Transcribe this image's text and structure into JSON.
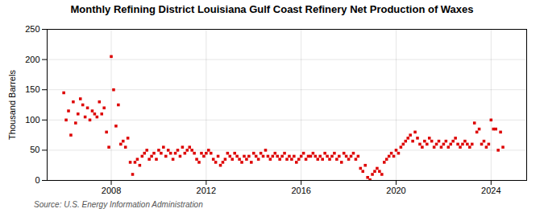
{
  "chart_data": {
    "type": "scatter",
    "title": "Monthly Refining District Louisiana Gulf Coast Refinery Net Production of Waxes",
    "ylabel": "Thousand Barrels",
    "annotations": [
      "Source: U.S. Energy Information Administration"
    ],
    "color": "#dd0000",
    "marker": "square",
    "grid": true,
    "xlim": [
      2005.3,
      2025.5
    ],
    "xticks": [
      2008,
      2012,
      2016,
      2020,
      2024
    ],
    "ylim": [
      0,
      250
    ],
    "yticks": [
      0,
      50,
      100,
      150,
      200,
      250
    ],
    "x": [
      2006.0,
      2006.1,
      2006.2,
      2006.3,
      2006.4,
      2006.5,
      2006.6,
      2006.7,
      2006.8,
      2006.9,
      2007.0,
      2007.1,
      2007.2,
      2007.3,
      2007.4,
      2007.5,
      2007.6,
      2007.7,
      2007.8,
      2007.9,
      2008.0,
      2008.1,
      2008.2,
      2008.3,
      2008.4,
      2008.5,
      2008.6,
      2008.7,
      2008.8,
      2008.9,
      2009.0,
      2009.1,
      2009.2,
      2009.3,
      2009.4,
      2009.5,
      2009.6,
      2009.7,
      2009.8,
      2009.9,
      2010.0,
      2010.1,
      2010.2,
      2010.3,
      2010.4,
      2010.5,
      2010.6,
      2010.7,
      2010.8,
      2010.9,
      2011.0,
      2011.1,
      2011.2,
      2011.3,
      2011.4,
      2011.5,
      2011.6,
      2011.7,
      2011.8,
      2011.9,
      2012.0,
      2012.1,
      2012.2,
      2012.3,
      2012.4,
      2012.5,
      2012.6,
      2012.7,
      2012.8,
      2012.9,
      2013.0,
      2013.1,
      2013.2,
      2013.3,
      2013.4,
      2013.5,
      2013.6,
      2013.7,
      2013.8,
      2013.9,
      2014.0,
      2014.1,
      2014.2,
      2014.3,
      2014.4,
      2014.5,
      2014.6,
      2014.7,
      2014.8,
      2014.9,
      2015.0,
      2015.1,
      2015.2,
      2015.3,
      2015.4,
      2015.5,
      2015.6,
      2015.7,
      2015.8,
      2015.9,
      2016.0,
      2016.1,
      2016.2,
      2016.3,
      2016.4,
      2016.5,
      2016.6,
      2016.7,
      2016.8,
      2016.9,
      2017.0,
      2017.1,
      2017.2,
      2017.3,
      2017.4,
      2017.5,
      2017.6,
      2017.7,
      2017.8,
      2017.9,
      2018.0,
      2018.1,
      2018.2,
      2018.3,
      2018.4,
      2018.5,
      2018.6,
      2018.7,
      2018.8,
      2018.9,
      2019.0,
      2019.1,
      2019.2,
      2019.3,
      2019.4,
      2019.5,
      2019.6,
      2019.7,
      2019.8,
      2019.9,
      2020.0,
      2020.1,
      2020.2,
      2020.3,
      2020.4,
      2020.5,
      2020.6,
      2020.7,
      2020.8,
      2020.9,
      2021.0,
      2021.1,
      2021.2,
      2021.3,
      2021.4,
      2021.5,
      2021.6,
      2021.7,
      2021.8,
      2021.9,
      2022.0,
      2022.1,
      2022.2,
      2022.3,
      2022.4,
      2022.5,
      2022.6,
      2022.7,
      2022.8,
      2022.9,
      2023.0,
      2023.1,
      2023.2,
      2023.3,
      2023.4,
      2023.5,
      2023.6,
      2023.7,
      2023.8,
      2023.9,
      2024.0,
      2024.1,
      2024.2,
      2024.3,
      2024.4,
      2024.5
    ],
    "values": [
      145,
      100,
      115,
      75,
      130,
      95,
      110,
      135,
      125,
      105,
      120,
      100,
      115,
      110,
      105,
      130,
      110,
      120,
      80,
      55,
      205,
      150,
      90,
      125,
      60,
      65,
      55,
      70,
      30,
      10,
      30,
      35,
      25,
      40,
      45,
      50,
      35,
      40,
      45,
      35,
      50,
      45,
      55,
      40,
      50,
      45,
      35,
      45,
      50,
      40,
      55,
      45,
      50,
      55,
      50,
      45,
      35,
      30,
      45,
      40,
      45,
      50,
      45,
      35,
      30,
      40,
      25,
      30,
      35,
      45,
      40,
      35,
      45,
      40,
      35,
      30,
      40,
      35,
      40,
      30,
      45,
      40,
      35,
      45,
      40,
      50,
      40,
      35,
      40,
      45,
      40,
      35,
      40,
      45,
      35,
      40,
      35,
      40,
      30,
      35,
      40,
      45,
      35,
      40,
      40,
      45,
      40,
      35,
      40,
      35,
      45,
      40,
      35,
      40,
      45,
      35,
      40,
      30,
      45,
      40,
      35,
      40,
      45,
      35,
      40,
      20,
      15,
      25,
      5,
      1,
      10,
      15,
      20,
      15,
      10,
      30,
      35,
      40,
      45,
      40,
      50,
      45,
      55,
      60,
      65,
      70,
      75,
      65,
      80,
      70,
      60,
      55,
      65,
      60,
      70,
      65,
      55,
      60,
      65,
      55,
      60,
      65,
      55,
      60,
      65,
      70,
      60,
      55,
      60,
      65,
      60,
      55,
      60,
      95,
      80,
      85,
      60,
      65,
      55,
      60,
      100,
      85,
      85,
      50,
      80,
      55
    ]
  }
}
